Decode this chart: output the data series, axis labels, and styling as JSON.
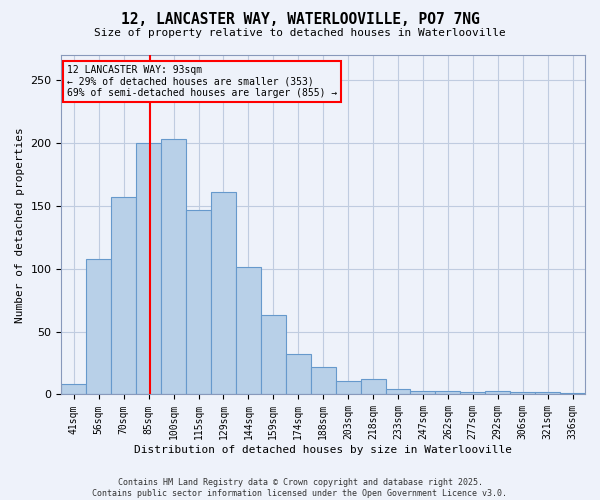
{
  "title": "12, LANCASTER WAY, WATERLOOVILLE, PO7 7NG",
  "subtitle": "Size of property relative to detached houses in Waterlooville",
  "xlabel": "Distribution of detached houses by size in Waterlooville",
  "ylabel": "Number of detached properties",
  "categories": [
    "41sqm",
    "56sqm",
    "70sqm",
    "85sqm",
    "100sqm",
    "115sqm",
    "129sqm",
    "144sqm",
    "159sqm",
    "174sqm",
    "188sqm",
    "203sqm",
    "218sqm",
    "233sqm",
    "247sqm",
    "262sqm",
    "277sqm",
    "292sqm",
    "306sqm",
    "321sqm",
    "336sqm"
  ],
  "values": [
    8,
    108,
    157,
    200,
    203,
    147,
    161,
    101,
    63,
    32,
    22,
    11,
    12,
    4,
    3,
    3,
    2,
    3,
    2,
    2,
    1
  ],
  "bar_color": "#b8d0e8",
  "bar_edge_color": "#6699cc",
  "annotation_text": "12 LANCASTER WAY: 93sqm\n← 29% of detached houses are smaller (353)\n69% of semi-detached houses are larger (855) →",
  "property_sqm": 93,
  "bin_edges": [
    41,
    56,
    70,
    85,
    100,
    115,
    129,
    144,
    159,
    174,
    188,
    203,
    218,
    233,
    247,
    262,
    277,
    292,
    306,
    321,
    336,
    351
  ],
  "footer_line1": "Contains HM Land Registry data © Crown copyright and database right 2025.",
  "footer_line2": "Contains public sector information licensed under the Open Government Licence v3.0.",
  "ylim": [
    0,
    270
  ],
  "background_color": "#eef2fa",
  "grid_color": "#c0cce0"
}
